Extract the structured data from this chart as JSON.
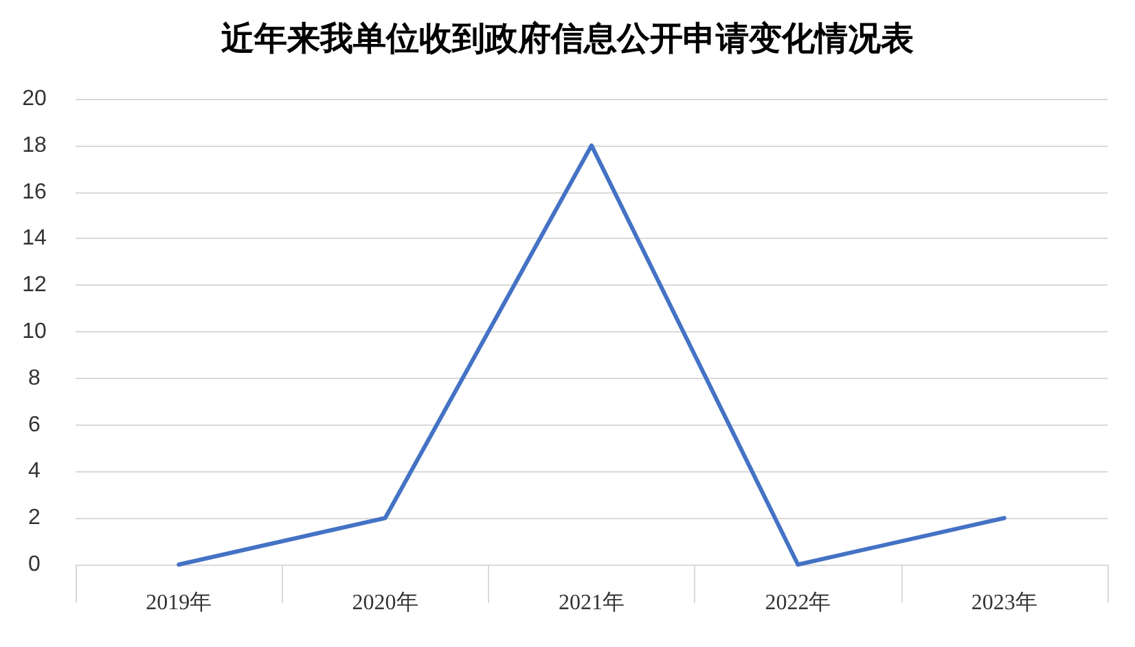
{
  "chart_data": {
    "type": "line",
    "title": "近年来我单位收到政府信息公开申请变化情况表",
    "categories": [
      "2019年",
      "2020年",
      "2021年",
      "2022年",
      "2023年"
    ],
    "series": [
      {
        "color": "#4472c4",
        "values": [
          0,
          2,
          18,
          0,
          2
        ]
      }
    ],
    "ylim": [
      0,
      20
    ],
    "yticks": [
      0,
      2,
      4,
      6,
      8,
      10,
      12,
      14,
      16,
      18,
      20
    ],
    "grid": "y",
    "marker": "none",
    "line_style": "solid"
  }
}
